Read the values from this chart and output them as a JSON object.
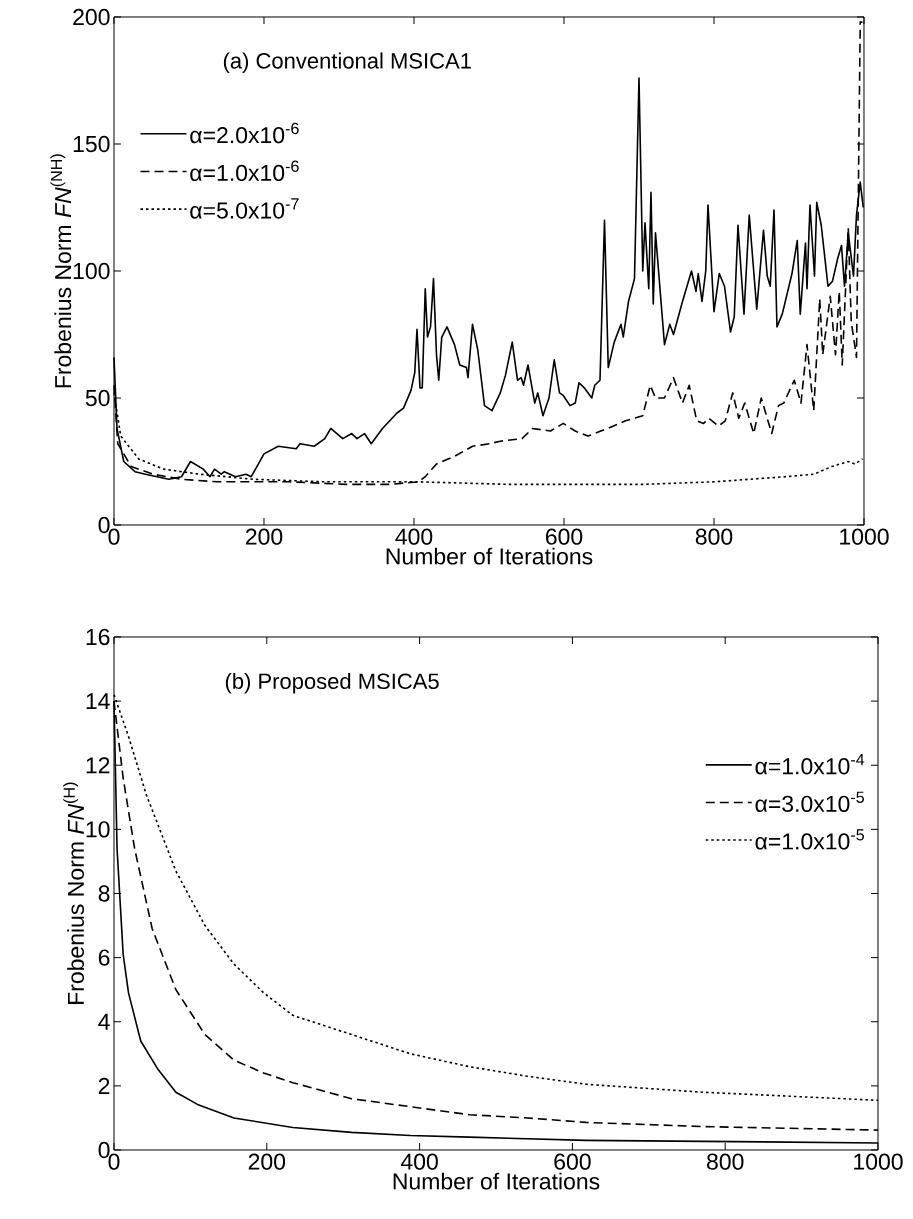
{
  "chart_data": [
    {
      "type": "line",
      "annotations": [
        "(a) Conventional MSICA1"
      ],
      "xlabel": "Number of Iterations",
      "ylabel": "Frobenius Norm *FN*$^{(NH)}$",
      "xlim": [
        0,
        1000
      ],
      "ylim": [
        0,
        200
      ],
      "xticks": [
        0,
        200,
        400,
        600,
        800,
        1000
      ],
      "yticks": [
        0,
        50,
        100,
        150,
        200
      ],
      "grid": false,
      "legend": "top left",
      "marker": "none",
      "series": [
        {
          "name": "α=2.0x10$^{-6}$",
          "color": "#000000",
          "line_style": "solid",
          "x": [
            0,
            4,
            13,
            28,
            42,
            73,
            90,
            102,
            119,
            128,
            134,
            143,
            147,
            162,
            176,
            183,
            200,
            219,
            243,
            248,
            267,
            281,
            289,
            305,
            317,
            324,
            334,
            343,
            358,
            377,
            386,
            396,
            401,
            404,
            408,
            411,
            415,
            418,
            422,
            426,
            430,
            433,
            437,
            444,
            454,
            461,
            470,
            472,
            478,
            485,
            494,
            504,
            515,
            522,
            531,
            538,
            543,
            546,
            552,
            561,
            565,
            572,
            580,
            587,
            594,
            599,
            608,
            615,
            620,
            627,
            637,
            641,
            648,
            654,
            659,
            667,
            676,
            679,
            686,
            694,
            700,
            705,
            708,
            713,
            716,
            719,
            722,
            734,
            741,
            746,
            758,
            770,
            776,
            779,
            784,
            789,
            792,
            800,
            807,
            814,
            822,
            827,
            832,
            840,
            847,
            857,
            866,
            871,
            875,
            880,
            884,
            891,
            904,
            911,
            915,
            922,
            924,
            928,
            934,
            937,
            943,
            952,
            958,
            965,
            970,
            974,
            979,
            986,
            990,
            995,
            999
          ],
          "values": [
            66,
            38,
            25,
            21,
            20,
            18,
            19,
            25,
            22,
            19,
            22,
            20,
            21,
            19,
            20,
            19,
            28,
            31,
            30,
            32,
            31,
            34,
            38,
            34,
            36,
            34,
            36,
            32,
            38,
            44,
            46,
            53,
            60,
            77,
            54,
            54,
            93,
            74,
            78,
            97,
            67,
            57,
            74,
            78,
            71,
            63,
            62,
            58,
            79,
            69,
            47,
            45,
            52,
            59,
            72,
            57,
            58,
            55,
            63,
            48,
            52,
            43,
            50,
            65,
            52,
            51,
            47,
            48,
            56,
            54,
            50,
            55,
            57,
            120,
            62,
            72,
            79,
            74,
            88,
            97,
            176,
            100,
            119,
            93,
            131,
            87,
            115,
            71,
            79,
            75,
            88,
            100,
            92,
            99,
            88,
            100,
            126,
            84,
            99,
            94,
            76,
            82,
            118,
            83,
            122,
            85,
            116,
            98,
            94,
            124,
            78,
            83,
            99,
            112,
            83,
            111,
            93,
            126,
            98,
            127,
            118,
            94,
            96,
            105,
            110,
            94,
            115,
            98,
            122,
            135,
            125
          ]
        },
        {
          "name": "α=1.0x10$^{-6}$",
          "color": "#000000",
          "line_style": "dashed",
          "x": [
            0,
            5,
            23,
            52,
            90,
            138,
            186,
            233,
            310,
            367,
            406,
            415,
            430,
            454,
            478,
            501,
            515,
            544,
            558,
            582,
            599,
            615,
            632,
            658,
            682,
            705,
            715,
            722,
            734,
            746,
            758,
            767,
            777,
            786,
            793,
            806,
            815,
            825,
            833,
            841,
            853,
            863,
            877,
            886,
            893,
            907,
            916,
            924,
            933,
            941,
            945,
            955,
            962,
            967,
            971,
            979,
            983,
            990,
            995,
            998
          ],
          "values": [
            55,
            32,
            23,
            20,
            18,
            17,
            17,
            17,
            16,
            16,
            17,
            19,
            24,
            27,
            31,
            32,
            33,
            34,
            38,
            37,
            40,
            37,
            35,
            38,
            41,
            43,
            55,
            50,
            50,
            58,
            48,
            55,
            41,
            40,
            42,
            39,
            41,
            52,
            42,
            48,
            36,
            50,
            36,
            47,
            48,
            57,
            48,
            71,
            45,
            89,
            67,
            90,
            67,
            92,
            63,
            117,
            80,
            66,
            198,
            198
          ]
        },
        {
          "name": "α=5.0x10$^{-7}$",
          "color": "#000000",
          "line_style": "dotted",
          "x": [
            0,
            9,
            33,
            66,
            114,
            186,
            281,
            406,
            525,
            600,
            705,
            800,
            895,
            933,
            957,
            979,
            988,
            998
          ],
          "values": [
            52,
            35,
            26,
            22,
            20,
            18,
            17,
            17,
            16,
            16,
            16,
            17,
            19,
            20,
            23,
            25,
            24,
            26
          ]
        }
      ]
    },
    {
      "type": "line",
      "annotations": [
        "(b) Proposed MSICA5"
      ],
      "xlabel": "Number of Iterations",
      "ylabel": "Frobenius Norm *FN*$^{(H)}$",
      "xlim": [
        0,
        1000
      ],
      "ylim": [
        0,
        16
      ],
      "xticks": [
        0,
        200,
        400,
        600,
        800,
        1000
      ],
      "yticks": [
        0,
        2,
        4,
        6,
        8,
        10,
        12,
        14,
        16
      ],
      "grid": false,
      "legend": "right",
      "marker": "none",
      "series": [
        {
          "name": "α=1.0x10$^{-4}$",
          "color": "#000000",
          "line_style": "solid",
          "x": [
            0,
            4,
            12,
            19,
            35,
            58,
            81,
            111,
            157,
            234,
            311,
            388,
            465,
            618,
            772,
            1000
          ],
          "values": [
            14,
            9.4,
            6.1,
            4.9,
            3.4,
            2.5,
            1.8,
            1.4,
            1.0,
            0.7,
            0.55,
            0.45,
            0.4,
            0.3,
            0.27,
            0.22
          ]
        },
        {
          "name": "α=3.0x10$^{-5}$",
          "color": "#000000",
          "line_style": "dashed",
          "x": [
            0,
            12,
            27,
            50,
            81,
            119,
            157,
            196,
            234,
            311,
            388,
            465,
            541,
            618,
            772,
            1000
          ],
          "values": [
            14,
            11.6,
            9.4,
            6.9,
            5.0,
            3.6,
            2.8,
            2.4,
            2.1,
            1.6,
            1.35,
            1.1,
            1.0,
            0.86,
            0.73,
            0.62
          ]
        },
        {
          "name": "α=1.0x10$^{-5}$",
          "color": "#000000",
          "line_style": "dotted",
          "x": [
            0,
            19,
            42,
            81,
            119,
            157,
            196,
            234,
            311,
            388,
            465,
            541,
            618,
            772,
            1000
          ],
          "values": [
            14.2,
            12.9,
            11.1,
            8.7,
            7.0,
            5.8,
            4.9,
            4.2,
            3.6,
            3.0,
            2.6,
            2.3,
            2.05,
            1.8,
            1.55
          ]
        }
      ]
    }
  ]
}
